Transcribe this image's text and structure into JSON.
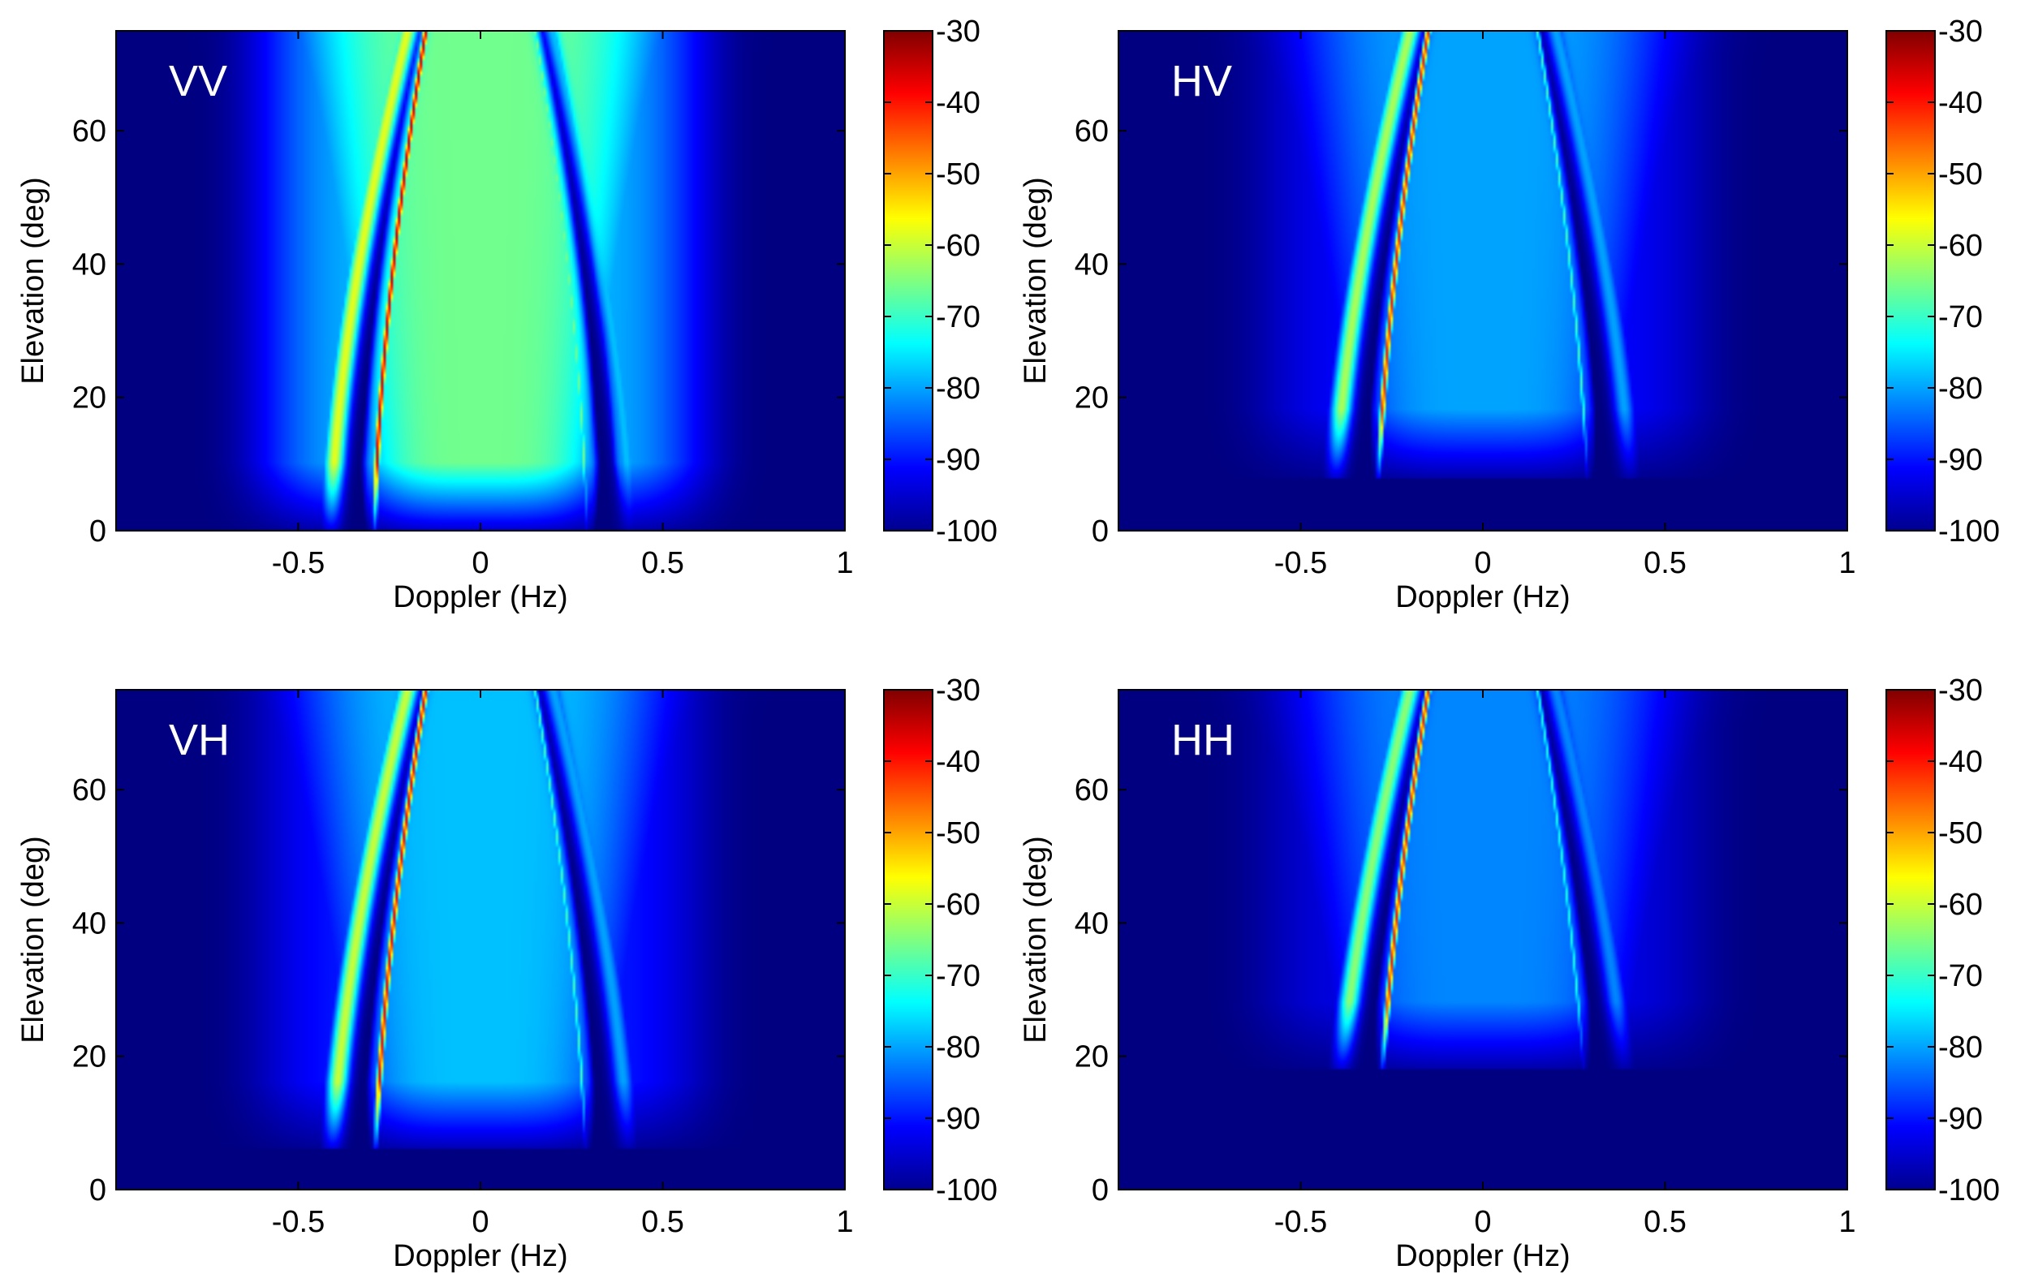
{
  "chart_data": [
    {
      "type": "heatmap",
      "panel_label": "VV",
      "xlabel": "Doppler (Hz)",
      "ylabel": "Elevation (deg)",
      "xlim": [
        -1,
        1
      ],
      "ylim": [
        0,
        75
      ],
      "xticks": [
        -0.5,
        0,
        0.5,
        1
      ],
      "xtick_labels": [
        "-0.5",
        "0",
        "0.5",
        "1"
      ],
      "yticks": [
        0,
        20,
        40,
        60
      ],
      "ytick_labels": [
        "0",
        "20",
        "40",
        "60"
      ],
      "colorbar": {
        "range": [
          -100,
          -30
        ],
        "ticks": [
          -30,
          -40,
          -50,
          -60,
          -70,
          -80,
          -90,
          -100
        ],
        "tick_labels": [
          "-30",
          "-40",
          "-50",
          "-60",
          "-70",
          "-80",
          "-90",
          "-100"
        ]
      },
      "cutoff": 0,
      "center_level": -66,
      "ridges": [
        {
          "f0": -0.29,
          "f75": -0.15,
          "level": -35,
          "width": 0.008
        },
        {
          "f0": 0.29,
          "f75": 0.15,
          "level": -66,
          "width": 0.006
        },
        {
          "f0": -0.41,
          "f75": -0.2,
          "level": -58,
          "width": 0.03
        },
        {
          "f0": 0.41,
          "f75": 0.2,
          "level": -78,
          "width": 0.03
        }
      ],
      "notches": [
        {
          "f0": -0.35,
          "f75": -0.18
        },
        {
          "f0": 0.35,
          "f75": 0.18
        }
      ]
    },
    {
      "type": "heatmap",
      "panel_label": "HV",
      "xlabel": "Doppler (Hz)",
      "ylabel": "Elevation (deg)",
      "xlim": [
        -1,
        1
      ],
      "ylim": [
        0,
        75
      ],
      "xticks": [
        -0.5,
        0,
        0.5,
        1
      ],
      "xtick_labels": [
        "-0.5",
        "0",
        "0.5",
        "1"
      ],
      "yticks": [
        0,
        20,
        40,
        60
      ],
      "ytick_labels": [
        "0",
        "20",
        "40",
        "60"
      ],
      "colorbar": {
        "range": [
          -100,
          -30
        ],
        "ticks": [
          -30,
          -40,
          -50,
          -60,
          -70,
          -80,
          -90,
          -100
        ],
        "tick_labels": [
          "-30",
          "-40",
          "-50",
          "-60",
          "-70",
          "-80",
          "-90",
          "-100"
        ]
      },
      "cutoff": 8,
      "center_level": -80,
      "ridges": [
        {
          "f0": -0.29,
          "f75": -0.15,
          "level": -40,
          "width": 0.008
        },
        {
          "f0": 0.29,
          "f75": 0.15,
          "level": -70,
          "width": 0.006
        },
        {
          "f0": -0.41,
          "f75": -0.2,
          "level": -62,
          "width": 0.03
        },
        {
          "f0": 0.41,
          "f75": 0.2,
          "level": -80,
          "width": 0.03
        }
      ],
      "notches": [
        {
          "f0": -0.35,
          "f75": -0.18
        },
        {
          "f0": 0.35,
          "f75": 0.18
        }
      ]
    },
    {
      "type": "heatmap",
      "panel_label": "VH",
      "xlabel": "Doppler (Hz)",
      "ylabel": "Elevation (deg)",
      "xlim": [
        -1,
        1
      ],
      "ylim": [
        0,
        75
      ],
      "xticks": [
        -0.5,
        0,
        0.5,
        1
      ],
      "xtick_labels": [
        "-0.5",
        "0",
        "0.5",
        "1"
      ],
      "yticks": [
        0,
        20,
        40,
        60
      ],
      "ytick_labels": [
        "0",
        "20",
        "40",
        "60"
      ],
      "colorbar": {
        "range": [
          -100,
          -30
        ],
        "ticks": [
          -30,
          -40,
          -50,
          -60,
          -70,
          -80,
          -90,
          -100
        ],
        "tick_labels": [
          "-30",
          "-40",
          "-50",
          "-60",
          "-70",
          "-80",
          "-90",
          "-100"
        ]
      },
      "cutoff": 6,
      "center_level": -78,
      "ridges": [
        {
          "f0": -0.29,
          "f75": -0.15,
          "level": -38,
          "width": 0.008
        },
        {
          "f0": 0.29,
          "f75": 0.15,
          "level": -70,
          "width": 0.006
        },
        {
          "f0": -0.41,
          "f75": -0.2,
          "level": -60,
          "width": 0.03
        },
        {
          "f0": 0.41,
          "f75": 0.2,
          "level": -80,
          "width": 0.03
        }
      ],
      "notches": [
        {
          "f0": -0.35,
          "f75": -0.18
        },
        {
          "f0": 0.35,
          "f75": 0.18
        }
      ]
    },
    {
      "type": "heatmap",
      "panel_label": "HH",
      "xlabel": "Doppler (Hz)",
      "ylabel": "Elevation (deg)",
      "xlim": [
        -1,
        1
      ],
      "ylim": [
        0,
        75
      ],
      "xticks": [
        -0.5,
        0,
        0.5,
        1
      ],
      "xtick_labels": [
        "-0.5",
        "0",
        "0.5",
        "1"
      ],
      "yticks": [
        0,
        20,
        40,
        60
      ],
      "ytick_labels": [
        "0",
        "20",
        "40",
        "60"
      ],
      "colorbar": {
        "range": [
          -100,
          -30
        ],
        "ticks": [
          -30,
          -40,
          -50,
          -60,
          -70,
          -80,
          -90,
          -100
        ],
        "tick_labels": [
          "-30",
          "-40",
          "-50",
          "-60",
          "-70",
          "-80",
          "-90",
          "-100"
        ]
      },
      "cutoff": 18,
      "center_level": -82,
      "ridges": [
        {
          "f0": -0.29,
          "f75": -0.15,
          "level": -40,
          "width": 0.008
        },
        {
          "f0": 0.29,
          "f75": 0.15,
          "level": -72,
          "width": 0.006
        },
        {
          "f0": -0.41,
          "f75": -0.2,
          "level": -64,
          "width": 0.03
        },
        {
          "f0": 0.41,
          "f75": 0.2,
          "level": -82,
          "width": 0.03
        }
      ],
      "notches": [
        {
          "f0": -0.35,
          "f75": -0.18
        },
        {
          "f0": 0.35,
          "f75": 0.18
        }
      ]
    }
  ]
}
